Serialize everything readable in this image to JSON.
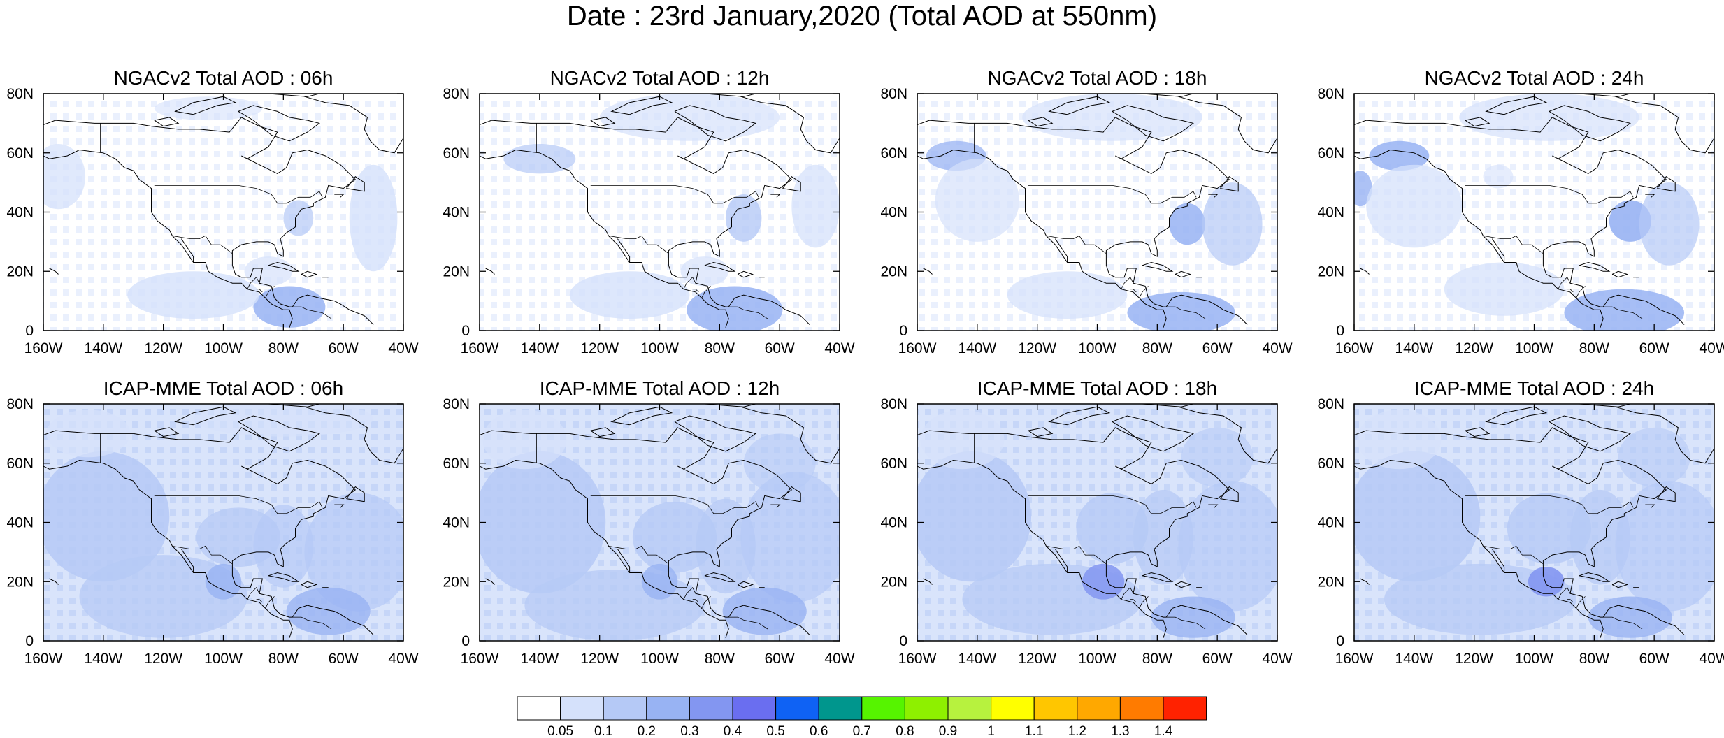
{
  "title": "Date : 23rd January,2020 (Total AOD at 550nm)",
  "panels": [
    {
      "title": "NGACv2 Total AOD : 06h",
      "model": "NGACv2",
      "hour": "06h"
    },
    {
      "title": "NGACv2 Total AOD : 12h",
      "model": "NGACv2",
      "hour": "12h"
    },
    {
      "title": "NGACv2 Total AOD : 18h",
      "model": "NGACv2",
      "hour": "18h"
    },
    {
      "title": "NGACv2 Total AOD : 24h",
      "model": "NGACv2",
      "hour": "24h"
    },
    {
      "title": "ICAP-MME Total AOD : 06h",
      "model": "ICAP-MME",
      "hour": "06h"
    },
    {
      "title": "ICAP-MME Total AOD : 12h",
      "model": "ICAP-MME",
      "hour": "12h"
    },
    {
      "title": "ICAP-MME Total AOD : 18h",
      "model": "ICAP-MME",
      "hour": "18h"
    },
    {
      "title": "ICAP-MME Total AOD : 24h",
      "model": "ICAP-MME",
      "hour": "24h"
    }
  ],
  "map": {
    "lon_range": [
      -160,
      -40
    ],
    "lat_range": [
      0,
      80
    ],
    "lon_ticks": [
      "160W",
      "140W",
      "120W",
      "100W",
      "80W",
      "60W",
      "40W"
    ],
    "lat_ticks": [
      "0",
      "20N",
      "40N",
      "60N",
      "80N"
    ]
  },
  "colorbar": {
    "colors": [
      "#ffffff",
      "#d5e1fb",
      "#b5c9f6",
      "#98b3f3",
      "#8396f1",
      "#6a6ef0",
      "#0f62f4",
      "#00968d",
      "#56f400",
      "#8ef000",
      "#b7f23e",
      "#ffff00",
      "#ffc600",
      "#ffa800",
      "#ff7b00",
      "#ff2200"
    ],
    "labels": [
      "0.05",
      "0.1",
      "0.2",
      "0.3",
      "0.4",
      "0.5",
      "0.6",
      "0.7",
      "0.8",
      "0.9",
      "1",
      "1.1",
      "1.2",
      "1.3",
      "1.4"
    ]
  }
}
